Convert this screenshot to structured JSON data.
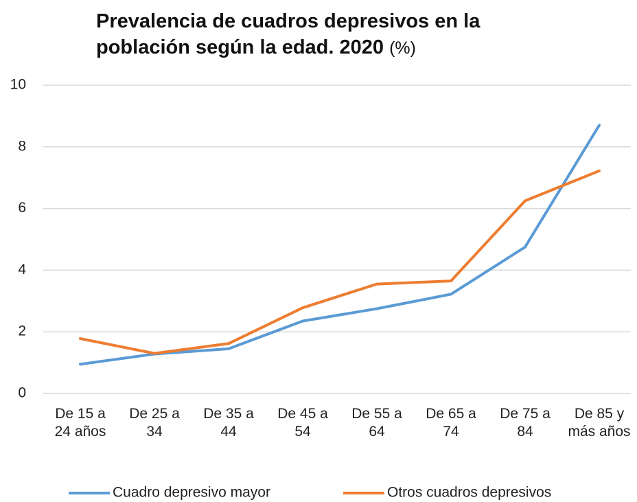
{
  "chart_data": {
    "type": "line",
    "title": "Prevalencia de cuadros depresivos en la población según la edad. 2020",
    "unit": "(%)",
    "categories": [
      "De 15 a 24 años",
      "De 25 a 34",
      "De 35 a 44",
      "De 45 a 54",
      "De 55 a 64",
      "De 65 a 74",
      "De 75 a 84",
      "De 85 y más años"
    ],
    "series": [
      {
        "name": "Cuadro depresivo mayor",
        "color": "#5b9bd5",
        "values": [
          0.95,
          1.28,
          1.45,
          2.35,
          2.75,
          3.22,
          4.75,
          8.7
        ]
      },
      {
        "name": "Otros cuadros depresivos",
        "color": "#ed7d31",
        "values": [
          1.78,
          1.3,
          1.62,
          2.78,
          3.55,
          3.65,
          6.25,
          7.22
        ]
      }
    ],
    "ylim": [
      0,
      10
    ],
    "yticks": [
      0,
      2,
      4,
      6,
      8,
      10
    ],
    "grid": true,
    "legend": "bottom"
  }
}
